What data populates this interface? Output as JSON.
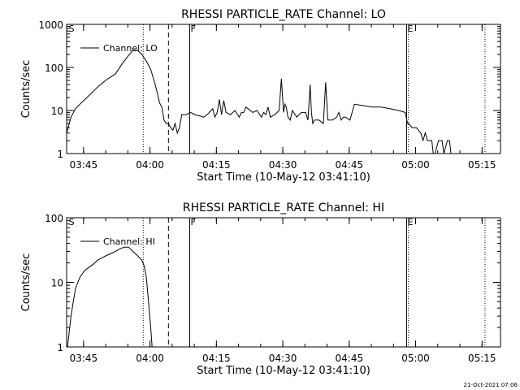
{
  "footer": {
    "timestamp": "21-Oct-2021 07:06"
  },
  "chart_data": [
    {
      "type": "line",
      "title": "RHESSI PARTICLE_RATE Channel: LO",
      "xlabel": "Start Time (10-May-12 03:41:10)",
      "ylabel": "Counts/sec",
      "yscale": "log",
      "xlim_minutes": [
        0,
        98
      ],
      "ylim": [
        1,
        1000
      ],
      "xticks": [
        {
          "m": 3.83,
          "label": "03:45"
        },
        {
          "m": 18.83,
          "label": "04:00"
        },
        {
          "m": 33.83,
          "label": "04:15"
        },
        {
          "m": 48.83,
          "label": "04:30"
        },
        {
          "m": 63.83,
          "label": "04:45"
        },
        {
          "m": 78.83,
          "label": "05:00"
        },
        {
          "m": 93.83,
          "label": "05:15"
        }
      ],
      "yticks": [
        {
          "v": 1000,
          "label": "1000"
        },
        {
          "v": 100,
          "label": "100"
        },
        {
          "v": 10,
          "label": "10"
        },
        {
          "v": 1,
          "label": "1"
        }
      ],
      "legend": "Channel: LO",
      "markers": [
        {
          "m": 0.3,
          "label": "S",
          "style": "none"
        },
        {
          "m": 17.3,
          "label": "",
          "style": "dotted"
        },
        {
          "m": 23.0,
          "label": "",
          "style": "dashed"
        },
        {
          "m": 27.8,
          "label": "F",
          "style": "solid"
        },
        {
          "m": 76.8,
          "label": "E",
          "style": "solid"
        },
        {
          "m": 77.2,
          "label": "",
          "style": "dotted"
        },
        {
          "m": 94.5,
          "label": "",
          "style": "dotted"
        }
      ],
      "x": [
        0.0,
        1.0,
        2.0,
        3.0,
        5.0,
        7.0,
        9.0,
        11.0,
        12.5,
        14.0,
        15.0,
        16.0,
        17.0,
        18.0,
        19.0,
        20.0,
        20.5,
        21.0,
        21.5,
        22.0,
        22.5,
        23.0,
        23.5,
        24.0,
        24.5,
        25.0,
        25.5,
        26.0,
        27.0,
        28.0,
        29.0,
        30.0,
        31.0,
        32.0,
        33.0,
        33.5,
        34.0,
        34.5,
        35.0,
        35.5,
        36.0,
        37.0,
        38.0,
        39.0,
        39.5,
        40.0,
        40.5,
        41.0,
        41.5,
        42.0,
        43.0,
        44.0,
        44.5,
        45.0,
        45.5,
        46.0,
        47.0,
        48.0,
        48.5,
        49.0,
        49.3,
        49.6,
        50.0,
        50.5,
        51.0,
        52.0,
        53.0,
        54.0,
        54.5,
        55.0,
        55.3,
        55.6,
        56.0,
        57.0,
        58.0,
        58.5,
        59.0,
        60.0,
        61.0,
        61.5,
        62.0,
        62.5,
        63.0,
        64.0,
        65.0,
        67.0,
        69.0,
        71.0,
        73.0,
        75.0,
        76.5,
        77.0,
        77.3,
        78.0,
        79.0,
        80.0,
        80.5,
        81.0,
        81.5,
        82.0,
        82.5,
        82.8,
        83.2,
        84.0,
        84.5,
        84.8,
        85.2,
        86.0,
        86.5,
        86.8,
        87.5
      ],
      "y": [
        3,
        7,
        11,
        14,
        22,
        35,
        52,
        70,
        120,
        190,
        250,
        250,
        200,
        140,
        90,
        40,
        25,
        15,
        12,
        6,
        5,
        5,
        4,
        3.5,
        5,
        3,
        4,
        8,
        8,
        9,
        8,
        7.5,
        7,
        8.5,
        11,
        7,
        9,
        18,
        8,
        17,
        9,
        8,
        10,
        7,
        9,
        9,
        12,
        11,
        10,
        9,
        10,
        7,
        9,
        8,
        12,
        7,
        8,
        10,
        55,
        9,
        14,
        12,
        7,
        6,
        10,
        7,
        9,
        9,
        6,
        40,
        9,
        5,
        6,
        6,
        5,
        45,
        6,
        6,
        7,
        9,
        6,
        7,
        7,
        6,
        14,
        13,
        12,
        12,
        11,
        10,
        9,
        5,
        5,
        4,
        4,
        3,
        2,
        3,
        2,
        2,
        2,
        1,
        1,
        2,
        2,
        2,
        1,
        2,
        2,
        1,
        1
      ]
    },
    {
      "type": "line",
      "title": "RHESSI PARTICLE_RATE Channel: HI",
      "xlabel": "Start Time (10-May-12 03:41:10)",
      "ylabel": "Counts/sec",
      "yscale": "log",
      "xlim_minutes": [
        0,
        98
      ],
      "ylim": [
        1,
        100
      ],
      "xticks": [
        {
          "m": 3.83,
          "label": "03:45"
        },
        {
          "m": 18.83,
          "label": "04:00"
        },
        {
          "m": 33.83,
          "label": "04:15"
        },
        {
          "m": 48.83,
          "label": "04:30"
        },
        {
          "m": 63.83,
          "label": "04:45"
        },
        {
          "m": 78.83,
          "label": "05:00"
        },
        {
          "m": 93.83,
          "label": "05:15"
        }
      ],
      "yticks": [
        {
          "v": 100,
          "label": "100"
        },
        {
          "v": 10,
          "label": "10"
        },
        {
          "v": 1,
          "label": "1"
        }
      ],
      "legend": "Channel: HI",
      "markers": [
        {
          "m": 0.3,
          "label": "S",
          "style": "none"
        },
        {
          "m": 17.3,
          "label": "",
          "style": "dotted"
        },
        {
          "m": 23.0,
          "label": "",
          "style": "dashed"
        },
        {
          "m": 27.8,
          "label": "F",
          "style": "solid"
        },
        {
          "m": 76.8,
          "label": "E",
          "style": "solid"
        },
        {
          "m": 77.2,
          "label": "",
          "style": "dotted"
        },
        {
          "m": 94.5,
          "label": "",
          "style": "dotted"
        }
      ],
      "x": [
        0.2,
        0.5,
        1.0,
        1.5,
        2.0,
        3.0,
        4.0,
        5.0,
        6.0,
        7.0,
        8.0,
        9.0,
        10.0,
        11.0,
        12.0,
        13.0,
        14.0,
        15.0,
        16.0,
        17.0,
        17.5,
        18.0,
        18.5,
        19.0,
        19.3
      ],
      "y": [
        1,
        1.5,
        3,
        5,
        8,
        12,
        15,
        17,
        19,
        22,
        24,
        26,
        28,
        30,
        33,
        35,
        35,
        30,
        26,
        22,
        18,
        12,
        5,
        2,
        1
      ]
    }
  ]
}
